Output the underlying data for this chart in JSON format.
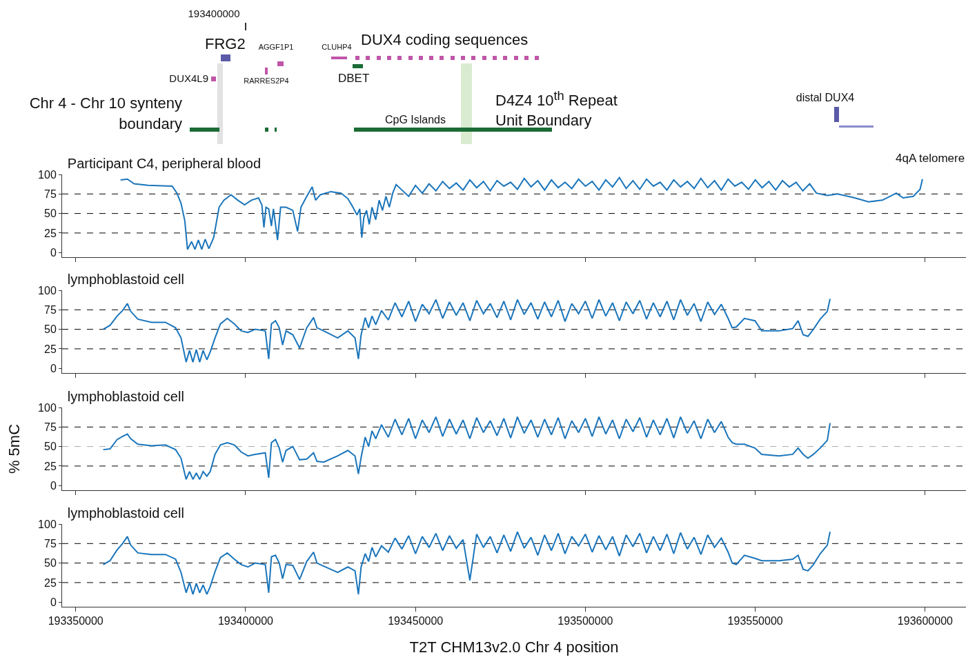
{
  "chart_data": [
    {
      "type": "other",
      "annotations": [
        "193400000",
        "FRG2",
        "AGGF1P1",
        "CLUHP4",
        "DUX4 coding sequences",
        "DUX4L9",
        "RARRES2P4",
        "DBET",
        "Chr 4 - Chr 10 synteny boundary",
        "D4Z4 10$^{th}$ Repeat Unit Boundary",
        "CpG Islands",
        "distal DUX4"
      ]
    },
    {
      "type": "line",
      "title": "Participant C4, peripheral blood",
      "annotations": [
        "4qA telomere"
      ],
      "tick_labels": "y",
      "xlim": [
        193346000,
        193612000
      ],
      "xticks": [
        193350000,
        193400000,
        193450000,
        193500000,
        193550000,
        193600000
      ],
      "ylim": [
        -6,
        100
      ],
      "yticks": [
        0,
        25,
        50,
        75,
        100
      ],
      "ref_lines": [
        {
          "axis": "y",
          "value": 25,
          "color": "#000000",
          "line_style": "dashed"
        },
        {
          "axis": "y",
          "value": 50,
          "color": "#000000",
          "line_style": "dashed"
        },
        {
          "axis": "y",
          "value": 75,
          "color": "#000000",
          "line_style": "dashed"
        }
      ],
      "x": [
        193363200,
        193365200,
        193367200,
        193371300,
        193378400,
        193379800,
        193381000,
        193382100,
        193382900,
        193384100,
        193385100,
        193386100,
        193387100,
        193388100,
        193389200,
        193390600,
        193392200,
        193393600,
        193395700,
        193397700,
        193399700,
        193401700,
        193403800,
        193404800,
        193405400,
        193406000,
        193406800,
        193407600,
        193408200,
        193409400,
        193410300,
        193411900,
        193413900,
        193415300,
        193416300,
        193418000,
        193419600,
        193420600,
        193422000,
        193425100,
        193428100,
        193430100,
        193431600,
        193432800,
        193433600,
        193434200,
        193434800,
        193435600,
        193436400,
        193437200,
        193438300,
        193439300,
        193440300,
        193441300,
        193442300,
        193443300,
        193444300,
        193446000,
        193448000,
        193450000,
        193452000,
        193454000,
        193456000,
        193458000,
        193460000,
        193462000,
        193464000,
        193466000,
        193468000,
        193470000,
        193472000,
        193474000,
        193476000,
        193478000,
        193480000,
        193482000,
        193484000,
        193486000,
        193488000,
        193490000,
        193492000,
        193494000,
        193496000,
        193498000,
        193500000,
        193502000,
        193504000,
        193506000,
        193508000,
        193510000,
        193512000,
        193514000,
        193516000,
        193518000,
        193520000,
        193522000,
        193524000,
        193526000,
        193528000,
        193530000,
        193532000,
        193534000,
        193536000,
        193538000,
        193540000,
        193542000,
        193544000,
        193546000,
        193548000,
        193550000,
        193552000,
        193554000,
        193556000,
        193558000,
        193560000,
        193562000,
        193564000,
        193566000,
        193568000,
        193571200,
        193574200,
        193579300,
        193583300,
        193587400,
        193591500,
        193593500,
        193596500,
        193598500,
        193599200
      ],
      "series": [
        {
          "color": "#1a75bb",
          "values": [
            93,
            94,
            88,
            86,
            85,
            76,
            63,
            41,
            4,
            14,
            4,
            16,
            4,
            17,
            5,
            19,
            58,
            67,
            74,
            67,
            61,
            67,
            70,
            61,
            32,
            58,
            56,
            34,
            56,
            16,
            58,
            58,
            54,
            27,
            58,
            72,
            84,
            67,
            74,
            78,
            76,
            69,
            58,
            48,
            56,
            19,
            45,
            54,
            36,
            58,
            42,
            67,
            54,
            72,
            58,
            76,
            87,
            80,
            72,
            86,
            76,
            88,
            79,
            91,
            82,
            89,
            80,
            93,
            83,
            91,
            79,
            92,
            85,
            90,
            81,
            95,
            84,
            92,
            80,
            93,
            83,
            90,
            82,
            94,
            85,
            91,
            80,
            93,
            84,
            96,
            82,
            92,
            81,
            94,
            85,
            90,
            80,
            93,
            84,
            91,
            82,
            95,
            83,
            92,
            80,
            94,
            85,
            90,
            81,
            93,
            83,
            91,
            80,
            92,
            84,
            90,
            79,
            88,
            76,
            73,
            75,
            70,
            65,
            67,
            76,
            70,
            72,
            81,
            94
          ]
        }
      ]
    },
    {
      "type": "line",
      "title": "lymphoblastoid cell",
      "tick_labels": "y",
      "xlim": [
        193346000,
        193612000
      ],
      "xticks": [
        193350000,
        193400000,
        193450000,
        193500000,
        193550000,
        193600000
      ],
      "ylim": [
        -6,
        100
      ],
      "yticks": [
        0,
        25,
        50,
        75,
        100
      ],
      "ref_lines": [
        {
          "axis": "y",
          "value": 25,
          "color": "#000000",
          "line_style": "dashed"
        },
        {
          "axis": "y",
          "value": 50,
          "color": "#000000",
          "line_style": "dashed"
        },
        {
          "axis": "y",
          "value": 75,
          "color": "#000000",
          "line_style": "dashed"
        }
      ],
      "x": [
        193358100,
        193360100,
        193362200,
        193363800,
        193365200,
        193366200,
        193368300,
        193372300,
        193376400,
        193379400,
        193381000,
        193382500,
        193383500,
        193384500,
        193385500,
        193386500,
        193387500,
        193388600,
        193389600,
        193391000,
        193392600,
        193394600,
        193396700,
        193398700,
        193400700,
        193402800,
        193405800,
        193406800,
        193407600,
        193408800,
        193409900,
        193410900,
        193411900,
        193413900,
        193415900,
        193418000,
        193420000,
        193421000,
        193423000,
        193427100,
        193430100,
        193432200,
        193433200,
        193434000,
        193435200,
        193436200,
        193437200,
        193438300,
        193440000,
        193442000,
        193444000,
        193446000,
        193448000,
        193450000,
        193452000,
        193454000,
        193456000,
        193458000,
        193460000,
        193462000,
        193464000,
        193466000,
        193468000,
        193470000,
        193472000,
        193474000,
        193476000,
        193478000,
        193480000,
        193482000,
        193484000,
        193486000,
        193488000,
        193490000,
        193492000,
        193494000,
        193496000,
        193498000,
        193500000,
        193502000,
        193504000,
        193506000,
        193508000,
        193510000,
        193512000,
        193514000,
        193516000,
        193518000,
        193520000,
        193522000,
        193524000,
        193526000,
        193528000,
        193530000,
        193532000,
        193534000,
        193536000,
        193538000,
        193540000,
        193542000,
        193543200,
        193544400,
        193546800,
        193549900,
        193551900,
        193557000,
        193561000,
        193562600,
        193564100,
        193565500,
        193567100,
        193569100,
        193571200,
        193572000
      ],
      "series": [
        {
          "color": "#1a75bb",
          "values": [
            50,
            55,
            67,
            74,
            83,
            73,
            63,
            59,
            59,
            52,
            39,
            8,
            23,
            8,
            24,
            8,
            23,
            11,
            21,
            39,
            57,
            64,
            57,
            48,
            46,
            50,
            48,
            12,
            57,
            61,
            52,
            30,
            48,
            43,
            26,
            52,
            65,
            52,
            48,
            39,
            48,
            39,
            12,
            43,
            65,
            52,
            67,
            56,
            74,
            62,
            84,
            66,
            86,
            60,
            82,
            70,
            88,
            64,
            85,
            68,
            84,
            61,
            87,
            70,
            83,
            65,
            86,
            62,
            88,
            69,
            84,
            63,
            85,
            66,
            87,
            60,
            83,
            70,
            86,
            64,
            88,
            67,
            84,
            61,
            85,
            70,
            87,
            63,
            84,
            66,
            86,
            62,
            88,
            68,
            83,
            60,
            85,
            69,
            82,
            64,
            52,
            53,
            64,
            61,
            48,
            48,
            51,
            61,
            43,
            41,
            50,
            63,
            73,
            89
          ]
        }
      ]
    },
    {
      "type": "line",
      "title": "lymphoblastoid cell",
      "ylabel": "% 5mC",
      "tick_labels": "y",
      "xlim": [
        193346000,
        193612000
      ],
      "xticks": [
        193350000,
        193400000,
        193450000,
        193500000,
        193550000,
        193600000
      ],
      "ylim": [
        -6,
        100
      ],
      "yticks": [
        0,
        25,
        50,
        75,
        100
      ],
      "ref_lines": [
        {
          "axis": "y",
          "value": 25,
          "color": "#000000",
          "line_style": "dashed"
        },
        {
          "axis": "y",
          "value": 50,
          "color": "#aaaaaa",
          "line_style": "dashed"
        },
        {
          "axis": "y",
          "value": 75,
          "color": "#000000",
          "line_style": "dashed"
        }
      ],
      "x": [
        193358100,
        193360100,
        193362200,
        193363800,
        193365200,
        193366200,
        193368300,
        193372300,
        193376400,
        193379400,
        193381000,
        193382500,
        193383500,
        193384500,
        193385500,
        193386500,
        193387500,
        193388600,
        193389600,
        193391000,
        193392600,
        193394600,
        193396700,
        193398700,
        193400700,
        193402800,
        193405800,
        193406800,
        193407600,
        193408800,
        193409900,
        193410900,
        193411900,
        193413900,
        193415900,
        193418000,
        193420000,
        193421000,
        193423000,
        193427100,
        193430100,
        193432200,
        193433200,
        193434000,
        193435200,
        193436200,
        193437200,
        193438300,
        193440000,
        193442000,
        193444000,
        193446000,
        193448000,
        193450000,
        193452000,
        193454000,
        193456000,
        193458000,
        193460000,
        193462000,
        193464000,
        193466000,
        193468000,
        193470000,
        193472000,
        193474000,
        193476000,
        193478000,
        193480000,
        193482000,
        193484000,
        193486000,
        193488000,
        193490000,
        193492000,
        193494000,
        193496000,
        193498000,
        193500000,
        193502000,
        193504000,
        193506000,
        193508000,
        193510000,
        193512000,
        193514000,
        193516000,
        193518000,
        193520000,
        193522000,
        193524000,
        193526000,
        193528000,
        193530000,
        193532000,
        193534000,
        193536000,
        193538000,
        193540000,
        193542000,
        193543200,
        193544400,
        193546800,
        193549900,
        193551900,
        193557000,
        193561000,
        193562600,
        193564100,
        193565500,
        193567100,
        193569100,
        193571200,
        193572000
      ],
      "series": [
        {
          "color": "#1a75bb",
          "values": [
            46,
            47,
            59,
            63,
            66,
            60,
            53,
            51,
            52,
            46,
            35,
            8,
            18,
            8,
            16,
            8,
            18,
            12,
            18,
            40,
            52,
            55,
            52,
            43,
            38,
            40,
            42,
            10,
            55,
            59,
            48,
            30,
            45,
            50,
            33,
            34,
            42,
            31,
            30,
            38,
            45,
            38,
            15,
            36,
            62,
            50,
            70,
            60,
            78,
            62,
            85,
            65,
            86,
            60,
            84,
            68,
            88,
            63,
            85,
            66,
            84,
            60,
            87,
            68,
            83,
            64,
            86,
            61,
            88,
            67,
            84,
            62,
            85,
            65,
            87,
            60,
            83,
            68,
            86,
            63,
            88,
            66,
            84,
            60,
            85,
            69,
            87,
            62,
            84,
            65,
            86,
            61,
            88,
            67,
            83,
            60,
            85,
            68,
            82,
            62,
            55,
            53,
            53,
            48,
            40,
            38,
            40,
            48,
            40,
            35,
            40,
            48,
            58,
            80
          ]
        }
      ]
    },
    {
      "type": "line",
      "title": "lymphoblastoid cell",
      "xlabel": "T2T CHM13v2.0 Chr 4 position",
      "xlim": [
        193346000,
        193612000
      ],
      "xticks": [
        193350000,
        193400000,
        193450000,
        193500000,
        193550000,
        193600000
      ],
      "ylim": [
        -6,
        100
      ],
      "yticks": [
        0,
        25,
        50,
        75,
        100
      ],
      "ref_lines": [
        {
          "axis": "y",
          "value": 25,
          "color": "#000000",
          "line_style": "dashed"
        },
        {
          "axis": "y",
          "value": 50,
          "color": "#000000",
          "line_style": "dashed"
        },
        {
          "axis": "y",
          "value": 75,
          "color": "#000000",
          "line_style": "dashed"
        }
      ],
      "x": [
        193358100,
        193360100,
        193362200,
        193363800,
        193365200,
        193366200,
        193368300,
        193372300,
        193376400,
        193379400,
        193381000,
        193382500,
        193383500,
        193384500,
        193385500,
        193386500,
        193387500,
        193388600,
        193389600,
        193391000,
        193392600,
        193394600,
        193396700,
        193398700,
        193400700,
        193402800,
        193405800,
        193406800,
        193407600,
        193408800,
        193409900,
        193410900,
        193411900,
        193413900,
        193415900,
        193418000,
        193420000,
        193421000,
        193423000,
        193427100,
        193430100,
        193432200,
        193433200,
        193434000,
        193435200,
        193436200,
        193437200,
        193438300,
        193440000,
        193442000,
        193444000,
        193446000,
        193448000,
        193450000,
        193452000,
        193454000,
        193456000,
        193458000,
        193460000,
        193462000,
        193464000,
        193466000,
        193468000,
        193470000,
        193472000,
        193474000,
        193476000,
        193478000,
        193480000,
        193482000,
        193484000,
        193486000,
        193488000,
        193490000,
        193492000,
        193494000,
        193496000,
        193498000,
        193500000,
        193502000,
        193504000,
        193506000,
        193508000,
        193510000,
        193512000,
        193514000,
        193516000,
        193518000,
        193520000,
        193522000,
        193524000,
        193526000,
        193528000,
        193530000,
        193532000,
        193534000,
        193536000,
        193538000,
        193540000,
        193542000,
        193543200,
        193544400,
        193546800,
        193549900,
        193551900,
        193557000,
        193561000,
        193562600,
        193564100,
        193565500,
        193567100,
        193569100,
        193571200,
        193572000
      ],
      "series": [
        {
          "color": "#1a75bb",
          "values": [
            48,
            53,
            67,
            75,
            84,
            73,
            63,
            61,
            61,
            55,
            38,
            12,
            25,
            10,
            24,
            12,
            22,
            10,
            20,
            39,
            57,
            63,
            55,
            48,
            45,
            50,
            48,
            12,
            58,
            60,
            50,
            30,
            48,
            47,
            29,
            52,
            64,
            50,
            46,
            38,
            45,
            40,
            10,
            45,
            62,
            52,
            70,
            58,
            72,
            64,
            82,
            68,
            85,
            62,
            84,
            70,
            88,
            66,
            85,
            69,
            80,
            28,
            87,
            70,
            84,
            63,
            86,
            65,
            90,
            69,
            83,
            60,
            86,
            66,
            88,
            62,
            84,
            72,
            87,
            64,
            85,
            67,
            84,
            59,
            86,
            71,
            88,
            63,
            84,
            66,
            87,
            62,
            89,
            68,
            83,
            61,
            86,
            70,
            82,
            64,
            50,
            48,
            60,
            56,
            53,
            53,
            55,
            60,
            42,
            40,
            48,
            62,
            73,
            90
          ]
        }
      ]
    }
  ]
}
